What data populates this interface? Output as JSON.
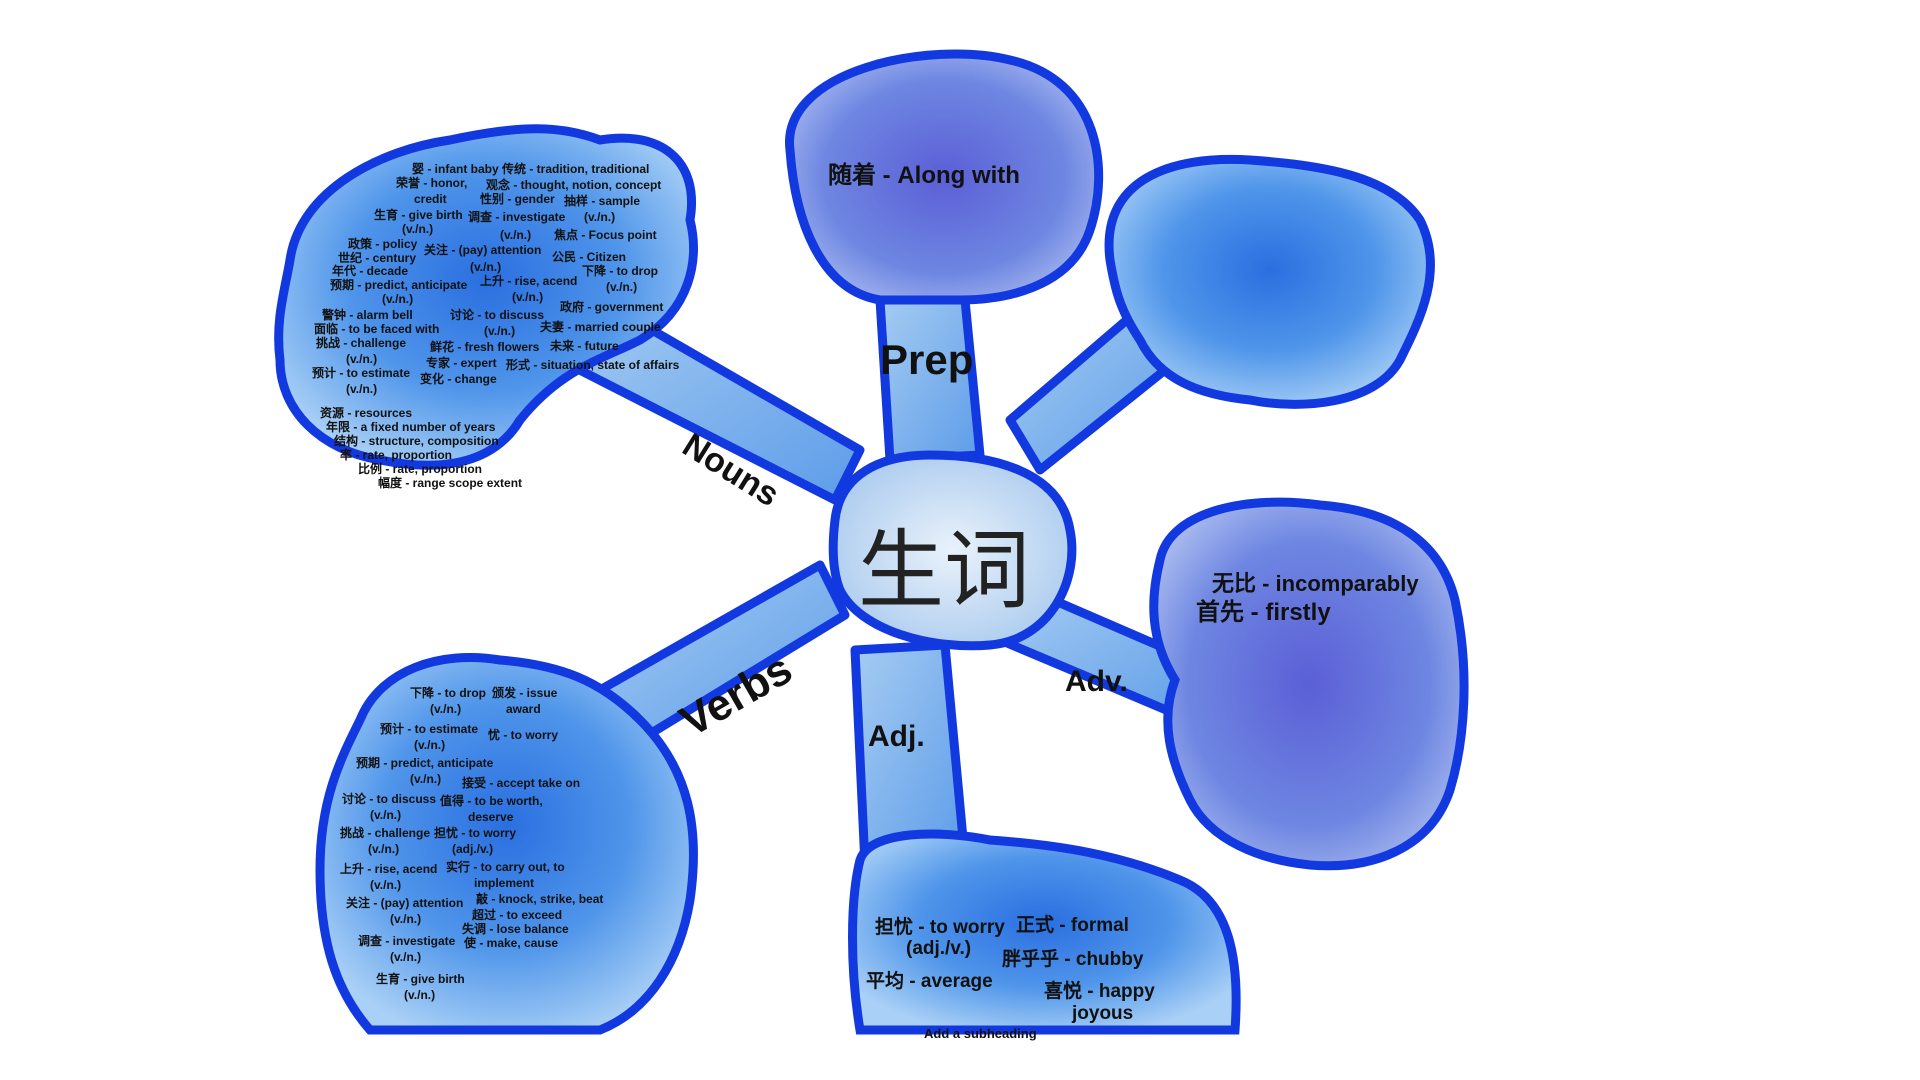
{
  "center": {
    "title": "生词"
  },
  "branches": {
    "prep": {
      "label": "Prep",
      "words": [
        "随着 - Along with"
      ]
    },
    "nouns": {
      "label": "Nouns",
      "words": [
        "婴 - infant baby",
        "传统 - tradition, traditional",
        "荣誉 - honor,",
        "credit",
        "观念 - thought, notion, concept",
        "性别 - gender",
        "抽样 - sample",
        "(v./n.)",
        "生育 - give birth",
        "(v./n.)",
        "调查 - investigate",
        "(v./n.)",
        "焦点 - Focus point",
        "政策 - policy",
        "世纪 - century",
        "关注 - (pay) attention",
        "(v./n.)",
        "公民 - Citizen",
        "年代 - decade",
        "下降 - to drop",
        "(v./n.)",
        "预期 - predict, anticipate",
        "(v./n.)",
        "上升 - rise, acend",
        "(v./n.)",
        "政府 - government",
        "警钟 - alarm bell",
        "讨论 - to discuss",
        "(v./n.)",
        "面临 - to be faced with",
        "夫妻 - married couple",
        "挑战 - challenge",
        "(v./n.)",
        "鲜花 - fresh flowers",
        "未来 - future",
        "专家 - expert",
        "形式 - situation, state of affairs",
        "预计 - to estimate",
        "(v./n.)",
        "变化 - change",
        "资源 - resources",
        "年限 - a fixed number of years",
        "结构 - structure, composition",
        "率 - rate, proportion",
        "比例 - rate, proportion",
        "幅度 - range scope extent"
      ]
    },
    "verbs": {
      "label": "Verbs",
      "words": [
        "下降 - to drop",
        "(v./n.)",
        "颁发 - issue",
        "award",
        "预计 - to estimate",
        "(v./n.)",
        "忧 - to worry",
        "预期 - predict, anticipate",
        "(v./n.)",
        "接受 - accept take on",
        "讨论 - to discuss",
        "(v./n.)",
        "值得 - to be worth,",
        "deserve",
        "挑战 - challenge",
        "(v./n.)",
        "担忧 - to worry",
        "(adj./v.)",
        "上升 - rise, acend",
        "(v./n.)",
        "实行 - to carry out, to",
        "implement",
        "关注 - (pay) attention",
        "(v./n.)",
        "敲 - knock, strike, beat",
        "超过 - to exceed",
        "失调 - lose balance",
        "调查 - investigate",
        "(v./n.)",
        "使 - make, cause",
        "生育 - give birth",
        "(v./n.)"
      ]
    },
    "adj": {
      "label": "Adj.",
      "words": [
        "担忧 - to worry",
        "(adj./v.)",
        "正式 - formal",
        "胖乎乎 - chubby",
        "平均 - average",
        "喜悦 - happy",
        "joyous"
      ]
    },
    "adv": {
      "label": "Adv.",
      "words": [
        "无比 - incomparably",
        "首先 - firstly"
      ]
    }
  },
  "footer": {
    "subheading": "Add a subheading"
  },
  "colors": {
    "stroke": "#1238e0",
    "fill_light": "#6fb0ef",
    "fill_mid": "#3f86e6",
    "fill_violet": "#7b7ad9"
  }
}
